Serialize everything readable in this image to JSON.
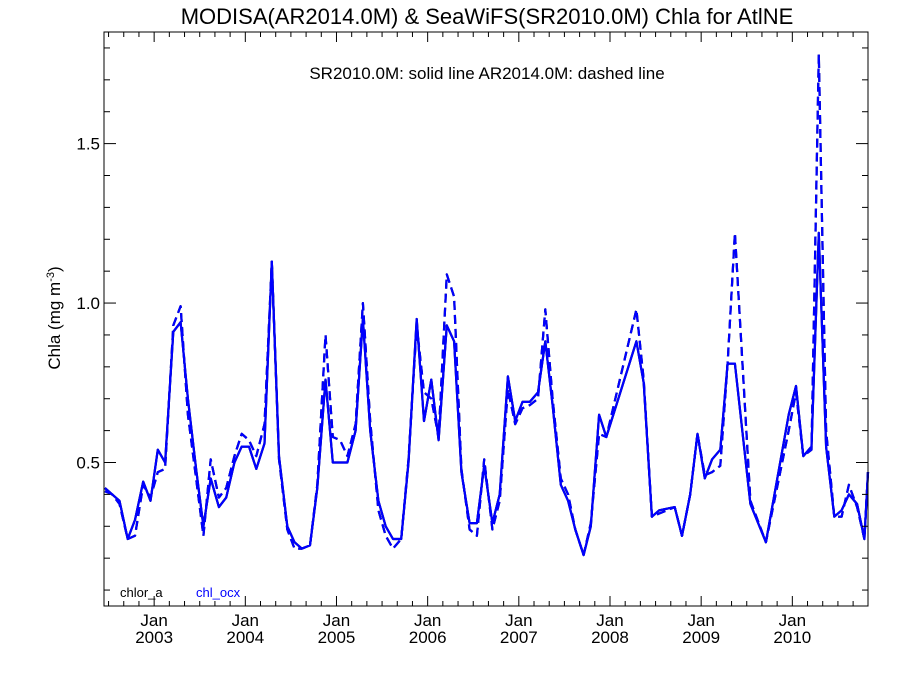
{
  "chart_data": {
    "type": "line",
    "title": "MODISA(AR2014.0M) & SeaWiFS(SR2010.0M)  Chla for AtlNE",
    "annotation": "SR2010.0M: solid line   AR2014.0M: dashed line",
    "ylabel": "Chla (mg m",
    "ylabel_sup": "-3",
    "ylabel_end": ")",
    "ylim": [
      0.05,
      1.85
    ],
    "yticks": [
      0.5,
      1.0,
      1.5
    ],
    "ytick_labels": [
      "0.5",
      "1.0",
      "1.5"
    ],
    "xlim": [
      2002.45,
      2010.83
    ],
    "xticks": [
      2003.0,
      2004.0,
      2005.0,
      2006.0,
      2007.0,
      2008.0,
      2009.0,
      2010.0
    ],
    "xtick_month": "Jan",
    "xtick_years": [
      "2003",
      "2004",
      "2005",
      "2006",
      "2007",
      "2008",
      "2009",
      "2010"
    ],
    "legend": [
      {
        "label": "chlor_a",
        "color": "#000000"
      },
      {
        "label": "chl_ocx",
        "color": "#0000ff"
      }
    ],
    "series": [
      {
        "name": "chlor_a",
        "product": "SR2010.0M",
        "style": "solid",
        "color": "#000000",
        "x": [
          2002.46,
          2002.54,
          2002.62,
          2002.71,
          2002.79,
          2002.88,
          2002.96,
          2003.04,
          2003.12,
          2003.21,
          2003.29,
          2003.37,
          2003.46,
          2003.54,
          2003.62,
          2003.71,
          2003.79,
          2003.88,
          2003.96,
          2004.04,
          2004.12,
          2004.21,
          2004.29,
          2004.37,
          2004.46,
          2004.54,
          2004.62,
          2004.71,
          2004.79,
          2004.88,
          2004.96,
          2005.04,
          2005.12,
          2005.21,
          2005.29,
          2005.37,
          2005.46,
          2005.54,
          2005.62,
          2005.71,
          2005.79,
          2005.88,
          2005.96,
          2006.04,
          2006.12,
          2006.21,
          2006.29,
          2006.37,
          2006.46,
          2006.54,
          2006.62,
          2006.71,
          2006.79,
          2006.88,
          2006.96,
          2007.04,
          2007.12,
          2007.21,
          2007.29,
          2007.37,
          2007.46,
          2007.54,
          2007.62,
          2007.71,
          2007.79,
          2007.88,
          2007.96,
          2008.29,
          2008.37,
          2008.46,
          2008.54,
          2008.71,
          2008.79,
          2008.88,
          2008.96,
          2009.04,
          2009.12,
          2009.21,
          2009.29,
          2009.37,
          2009.54,
          2009.71,
          2009.96,
          2010.04,
          2010.12,
          2010.21,
          2010.29,
          2010.37,
          2010.46,
          2010.54,
          2010.62,
          2010.71,
          2010.79,
          2010.83
        ],
        "y": [
          0.42,
          0.4,
          0.38,
          0.26,
          0.32,
          0.44,
          0.38,
          0.54,
          0.5,
          0.91,
          0.94,
          0.7,
          0.48,
          0.3,
          0.45,
          0.36,
          0.39,
          0.5,
          0.55,
          0.55,
          0.48,
          0.56,
          1.13,
          0.52,
          0.3,
          0.25,
          0.23,
          0.24,
          0.42,
          0.76,
          0.5,
          0.5,
          0.5,
          0.6,
          0.95,
          0.6,
          0.38,
          0.3,
          0.26,
          0.26,
          0.5,
          0.95,
          0.63,
          0.76,
          0.57,
          0.93,
          0.88,
          0.47,
          0.31,
          0.31,
          0.49,
          0.31,
          0.4,
          0.77,
          0.63,
          0.69,
          0.69,
          0.72,
          0.88,
          0.68,
          0.43,
          0.38,
          0.29,
          0.21,
          0.3,
          0.65,
          0.58,
          0.88,
          0.75,
          0.33,
          0.35,
          0.36,
          0.27,
          0.4,
          0.59,
          0.45,
          0.51,
          0.54,
          0.81,
          0.81,
          0.37,
          0.25,
          0.65,
          0.74,
          0.52,
          0.55,
          1.22,
          0.55,
          0.33,
          0.35,
          0.4,
          0.37,
          0.26,
          0.47
        ]
      },
      {
        "name": "chl_ocx",
        "product": "SR2010.0M",
        "style": "solid",
        "color": "#0000ff",
        "x": [
          2002.46,
          2002.54,
          2002.62,
          2002.71,
          2002.79,
          2002.88,
          2002.96,
          2003.04,
          2003.12,
          2003.21,
          2003.29,
          2003.37,
          2003.46,
          2003.54,
          2003.62,
          2003.71,
          2003.79,
          2003.88,
          2003.96,
          2004.04,
          2004.12,
          2004.21,
          2004.29,
          2004.37,
          2004.46,
          2004.54,
          2004.62,
          2004.71,
          2004.79,
          2004.88,
          2004.96,
          2005.04,
          2005.12,
          2005.21,
          2005.29,
          2005.37,
          2005.46,
          2005.54,
          2005.62,
          2005.71,
          2005.79,
          2005.88,
          2005.96,
          2006.04,
          2006.12,
          2006.21,
          2006.29,
          2006.37,
          2006.46,
          2006.54,
          2006.62,
          2006.71,
          2006.79,
          2006.88,
          2006.96,
          2007.04,
          2007.12,
          2007.21,
          2007.29,
          2007.37,
          2007.46,
          2007.54,
          2007.62,
          2007.71,
          2007.79,
          2007.88,
          2007.96,
          2008.29,
          2008.37,
          2008.46,
          2008.54,
          2008.71,
          2008.79,
          2008.88,
          2008.96,
          2009.04,
          2009.12,
          2009.21,
          2009.29,
          2009.37,
          2009.54,
          2009.71,
          2009.96,
          2010.04,
          2010.12,
          2010.21,
          2010.29,
          2010.37,
          2010.46,
          2010.54,
          2010.62,
          2010.71,
          2010.79,
          2010.83
        ],
        "y": [
          0.42,
          0.4,
          0.38,
          0.26,
          0.32,
          0.44,
          0.38,
          0.54,
          0.5,
          0.91,
          0.94,
          0.7,
          0.48,
          0.3,
          0.45,
          0.36,
          0.39,
          0.5,
          0.55,
          0.55,
          0.48,
          0.56,
          1.13,
          0.52,
          0.3,
          0.25,
          0.23,
          0.24,
          0.42,
          0.76,
          0.5,
          0.5,
          0.5,
          0.6,
          0.95,
          0.6,
          0.38,
          0.3,
          0.26,
          0.26,
          0.5,
          0.95,
          0.63,
          0.76,
          0.57,
          0.93,
          0.88,
          0.47,
          0.31,
          0.31,
          0.49,
          0.31,
          0.4,
          0.77,
          0.63,
          0.69,
          0.69,
          0.72,
          0.88,
          0.68,
          0.43,
          0.38,
          0.29,
          0.21,
          0.3,
          0.65,
          0.58,
          0.88,
          0.75,
          0.33,
          0.35,
          0.36,
          0.27,
          0.4,
          0.59,
          0.45,
          0.51,
          0.54,
          0.81,
          0.81,
          0.37,
          0.25,
          0.65,
          0.74,
          0.52,
          0.55,
          1.22,
          0.55,
          0.33,
          0.35,
          0.4,
          0.37,
          0.26,
          0.47
        ]
      },
      {
        "name": "chlor_a",
        "product": "AR2014.0M",
        "style": "dashed",
        "color": "#000000",
        "x": [
          2002.46,
          2002.54,
          2002.62,
          2002.71,
          2002.79,
          2002.88,
          2002.96,
          2003.04,
          2003.12,
          2003.21,
          2003.29,
          2003.37,
          2003.46,
          2003.54,
          2003.62,
          2003.71,
          2003.79,
          2003.88,
          2003.96,
          2004.04,
          2004.12,
          2004.21,
          2004.29,
          2004.37,
          2004.46,
          2004.54,
          2004.62,
          2004.71,
          2004.79,
          2004.88,
          2004.96,
          2005.04,
          2005.12,
          2005.21,
          2005.29,
          2005.37,
          2005.46,
          2005.54,
          2005.62,
          2005.71,
          2005.79,
          2005.88,
          2005.96,
          2006.04,
          2006.12,
          2006.21,
          2006.29,
          2006.37,
          2006.46,
          2006.54,
          2006.62,
          2006.71,
          2006.79,
          2006.88,
          2006.96,
          2007.04,
          2007.12,
          2007.21,
          2007.29,
          2007.37,
          2007.46,
          2007.54,
          2007.62,
          2007.71,
          2007.79,
          2007.88,
          2007.96,
          2008.29,
          2008.37,
          2008.46,
          2008.54,
          2008.71,
          2008.79,
          2008.88,
          2008.96,
          2009.04,
          2009.12,
          2009.21,
          2009.29,
          2009.37,
          2009.54,
          2009.71,
          2009.96,
          2010.04,
          2010.12,
          2010.21,
          2010.29,
          2010.37,
          2010.46,
          2010.54,
          2010.62,
          2010.71,
          2010.79,
          2010.83
        ],
        "y": [
          0.41,
          0.4,
          0.37,
          0.26,
          0.27,
          0.43,
          0.39,
          0.47,
          0.48,
          0.93,
          0.99,
          0.65,
          0.45,
          0.27,
          0.51,
          0.39,
          0.42,
          0.52,
          0.59,
          0.57,
          0.52,
          0.62,
          1.13,
          0.51,
          0.29,
          0.23,
          0.23,
          0.24,
          0.43,
          0.9,
          0.58,
          0.57,
          0.52,
          0.62,
          1.0,
          0.63,
          0.35,
          0.27,
          0.23,
          0.26,
          0.51,
          0.93,
          0.72,
          0.7,
          0.58,
          1.09,
          1.02,
          0.48,
          0.29,
          0.27,
          0.51,
          0.29,
          0.38,
          0.73,
          0.62,
          0.67,
          0.68,
          0.7,
          0.98,
          0.7,
          0.45,
          0.4,
          0.29,
          0.21,
          0.31,
          0.59,
          0.58,
          0.98,
          0.76,
          0.33,
          0.34,
          0.36,
          0.27,
          0.4,
          0.59,
          0.46,
          0.47,
          0.49,
          0.81,
          1.22,
          0.38,
          0.25,
          0.6,
          0.72,
          0.52,
          0.54,
          1.78,
          0.6,
          0.33,
          0.33,
          0.43,
          0.36,
          0.26,
          0.47
        ]
      },
      {
        "name": "chl_ocx",
        "product": "AR2014.0M",
        "style": "dashed",
        "color": "#0000ff",
        "x": [
          2002.46,
          2002.54,
          2002.62,
          2002.71,
          2002.79,
          2002.88,
          2002.96,
          2003.04,
          2003.12,
          2003.21,
          2003.29,
          2003.37,
          2003.46,
          2003.54,
          2003.62,
          2003.71,
          2003.79,
          2003.88,
          2003.96,
          2004.04,
          2004.12,
          2004.21,
          2004.29,
          2004.37,
          2004.46,
          2004.54,
          2004.62,
          2004.71,
          2004.79,
          2004.88,
          2004.96,
          2005.04,
          2005.12,
          2005.21,
          2005.29,
          2005.37,
          2005.46,
          2005.54,
          2005.62,
          2005.71,
          2005.79,
          2005.88,
          2005.96,
          2006.04,
          2006.12,
          2006.21,
          2006.29,
          2006.37,
          2006.46,
          2006.54,
          2006.62,
          2006.71,
          2006.79,
          2006.88,
          2006.96,
          2007.04,
          2007.12,
          2007.21,
          2007.29,
          2007.37,
          2007.46,
          2007.54,
          2007.62,
          2007.71,
          2007.79,
          2007.88,
          2007.96,
          2008.29,
          2008.37,
          2008.46,
          2008.54,
          2008.71,
          2008.79,
          2008.88,
          2008.96,
          2009.04,
          2009.12,
          2009.21,
          2009.29,
          2009.37,
          2009.54,
          2009.71,
          2009.96,
          2010.04,
          2010.12,
          2010.21,
          2010.29,
          2010.37,
          2010.46,
          2010.54,
          2010.62,
          2010.71,
          2010.79,
          2010.83
        ],
        "y": [
          0.41,
          0.4,
          0.37,
          0.26,
          0.27,
          0.43,
          0.39,
          0.47,
          0.48,
          0.93,
          0.99,
          0.65,
          0.45,
          0.27,
          0.51,
          0.39,
          0.42,
          0.52,
          0.59,
          0.57,
          0.52,
          0.62,
          1.13,
          0.51,
          0.29,
          0.23,
          0.23,
          0.24,
          0.43,
          0.9,
          0.58,
          0.57,
          0.52,
          0.62,
          1.0,
          0.63,
          0.35,
          0.27,
          0.23,
          0.26,
          0.51,
          0.93,
          0.72,
          0.7,
          0.58,
          1.09,
          1.02,
          0.48,
          0.29,
          0.27,
          0.51,
          0.29,
          0.38,
          0.73,
          0.62,
          0.67,
          0.68,
          0.7,
          0.98,
          0.7,
          0.45,
          0.4,
          0.29,
          0.21,
          0.31,
          0.59,
          0.58,
          0.98,
          0.76,
          0.33,
          0.34,
          0.36,
          0.27,
          0.4,
          0.59,
          0.46,
          0.47,
          0.49,
          0.81,
          1.22,
          0.38,
          0.25,
          0.6,
          0.72,
          0.52,
          0.54,
          1.78,
          0.6,
          0.33,
          0.33,
          0.43,
          0.36,
          0.26,
          0.47
        ]
      }
    ]
  }
}
